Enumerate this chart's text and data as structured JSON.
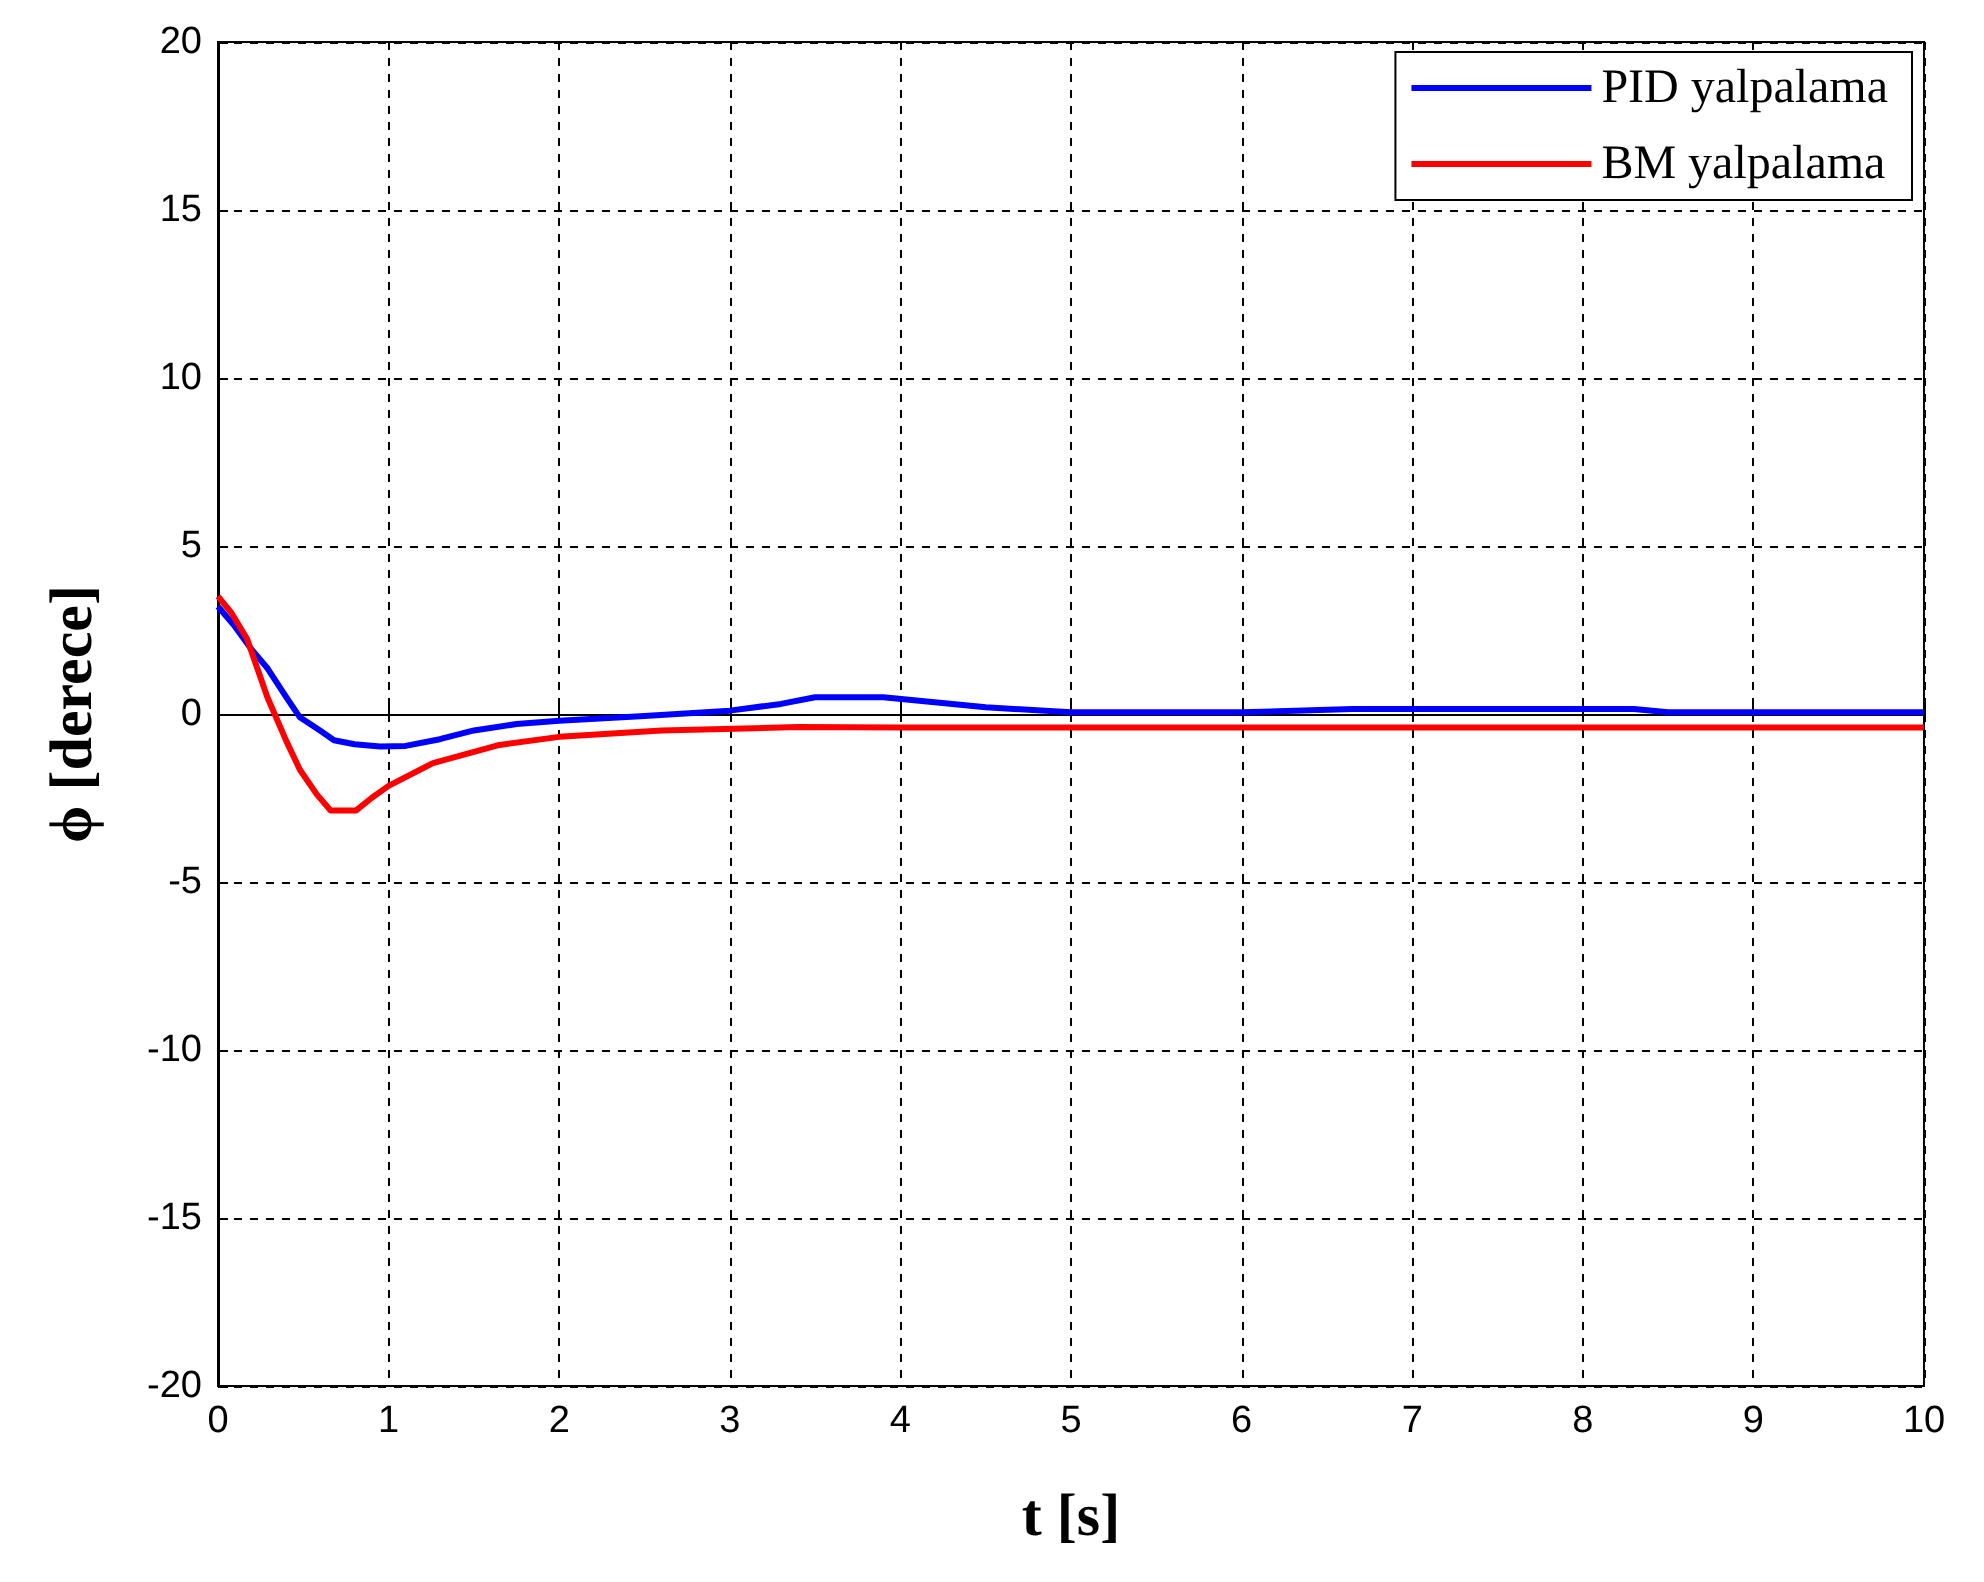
{
  "chart_data": {
    "type": "line",
    "xlabel": "t [s]",
    "ylabel": "ϕ [derece]",
    "xlim": [
      0,
      10
    ],
    "ylim": [
      -20,
      20
    ],
    "xticks": [
      0,
      1,
      2,
      3,
      4,
      5,
      6,
      7,
      8,
      9,
      10
    ],
    "yticks": [
      -20,
      -15,
      -10,
      -5,
      0,
      5,
      10,
      15,
      20
    ],
    "grid": true,
    "legend": "top right",
    "marker": "none",
    "line_style": "solid",
    "series": [
      {
        "name": "PID yalpalama",
        "color": "#0000ff",
        "x": [
          0,
          0.1,
          0.2,
          0.29,
          0.4,
          0.48,
          0.6,
          0.68,
          0.8,
          0.95,
          1.1,
          1.3,
          1.5,
          1.75,
          2,
          2.5,
          3,
          3.3,
          3.5,
          3.9,
          4.2,
          4.5,
          5,
          6,
          6.65,
          8.3,
          8.5,
          9,
          10
        ],
        "values": [
          3.2,
          2.6,
          1.9,
          1.36,
          0.5,
          -0.1,
          -0.5,
          -0.78,
          -0.9,
          -0.97,
          -0.95,
          -0.75,
          -0.49,
          -0.3,
          -0.2,
          -0.06,
          0.1,
          0.3,
          0.5,
          0.5,
          0.35,
          0.2,
          0.05,
          0.05,
          0.15,
          0.15,
          0.05,
          0.05,
          0.05
        ]
      },
      {
        "name": "BM yalpalama",
        "color": "#ff0000",
        "x": [
          0,
          0.08,
          0.17,
          0.29,
          0.4,
          0.48,
          0.58,
          0.66,
          0.81,
          0.9,
          1,
          1.26,
          1.65,
          2,
          2.6,
          3.4,
          4,
          10
        ],
        "values": [
          3.5,
          3.0,
          2.24,
          0.49,
          -0.8,
          -1.66,
          -2.4,
          -2.87,
          -2.87,
          -2.5,
          -2.14,
          -1.46,
          -0.92,
          -0.68,
          -0.49,
          -0.39,
          -0.4,
          -0.4
        ]
      }
    ]
  }
}
